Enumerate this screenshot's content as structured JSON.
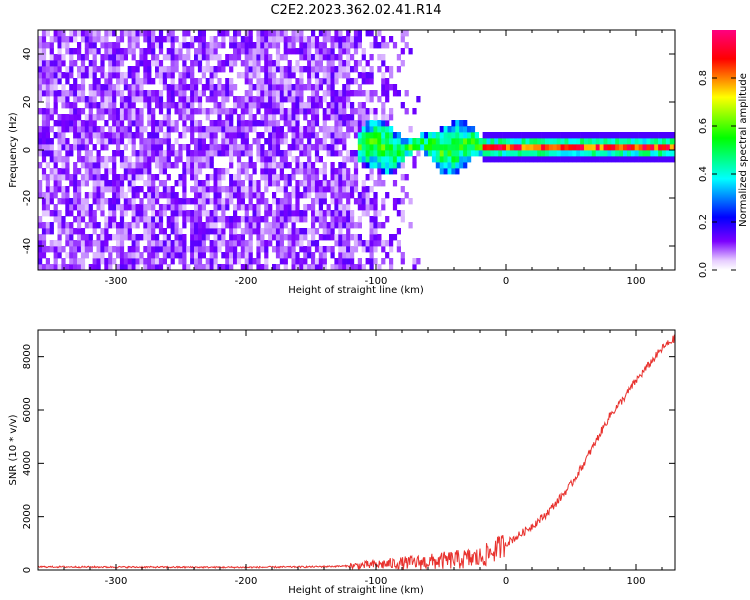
{
  "title": "C2E2.2023.362.02.41.R14",
  "chart_data": [
    {
      "type": "heatmap",
      "xlabel": "Height of straight line (km)",
      "ylabel": "Frequency (Hz)",
      "xlim": [
        -360,
        130
      ],
      "ylim": [
        -50,
        50
      ],
      "xticks": [
        -300,
        -200,
        -100,
        0,
        100
      ],
      "xtick_labels": [
        "-300",
        "-200",
        "-100",
        "0",
        "100"
      ],
      "yticks": [
        -40,
        -20,
        0,
        20,
        40
      ],
      "ytick_labels": [
        "-40",
        "-20",
        "0",
        "20",
        "40"
      ],
      "colorbar": {
        "label": "Normalized spectral amplitude",
        "range": [
          0,
          1
        ],
        "ticks": [
          0.0,
          0.2,
          0.4,
          0.6,
          0.8
        ],
        "tick_labels": [
          "0.0",
          "0.2",
          "0.4",
          "0.6",
          "0.8"
        ],
        "colors": [
          "#ffffff",
          "#7b00ff",
          "#0000ff",
          "#00ffff",
          "#00ff00",
          "#ffff00",
          "#ff0000",
          "#ff0080"
        ]
      },
      "features": {
        "noise_region": [
          -360,
          -65
        ],
        "signal_line_frequency": 0,
        "signal_start": -115
      },
      "grid": false
    },
    {
      "type": "line",
      "xlabel": "Height of straight line (km)",
      "ylabel": "SNR (10 * v/v)",
      "xlim": [
        -360,
        130
      ],
      "ylim": [
        0,
        9000
      ],
      "xticks": [
        -300,
        -200,
        -100,
        0,
        100
      ],
      "xtick_labels": [
        "-300",
        "-200",
        "-100",
        "0",
        "100"
      ],
      "yticks": [
        0,
        2000,
        4000,
        6000,
        8000
      ],
      "ytick_labels": [
        "0",
        "2000",
        "4000",
        "6000",
        "8000"
      ],
      "series": [
        {
          "color": "#e8322e",
          "x": [
            -360,
            -300,
            -200,
            -150,
            -120,
            -100,
            -80,
            -60,
            -40,
            -20,
            -10,
            0,
            10,
            20,
            30,
            40,
            50,
            60,
            70,
            80,
            90,
            100,
            110,
            120,
            130
          ],
          "y": [
            120,
            110,
            100,
            120,
            150,
            200,
            260,
            300,
            380,
            450,
            700,
            1000,
            1300,
            1650,
            2050,
            2600,
            3200,
            4000,
            4900,
            5800,
            6400,
            7100,
            7700,
            8300,
            8700
          ]
        }
      ],
      "grid": false
    }
  ]
}
